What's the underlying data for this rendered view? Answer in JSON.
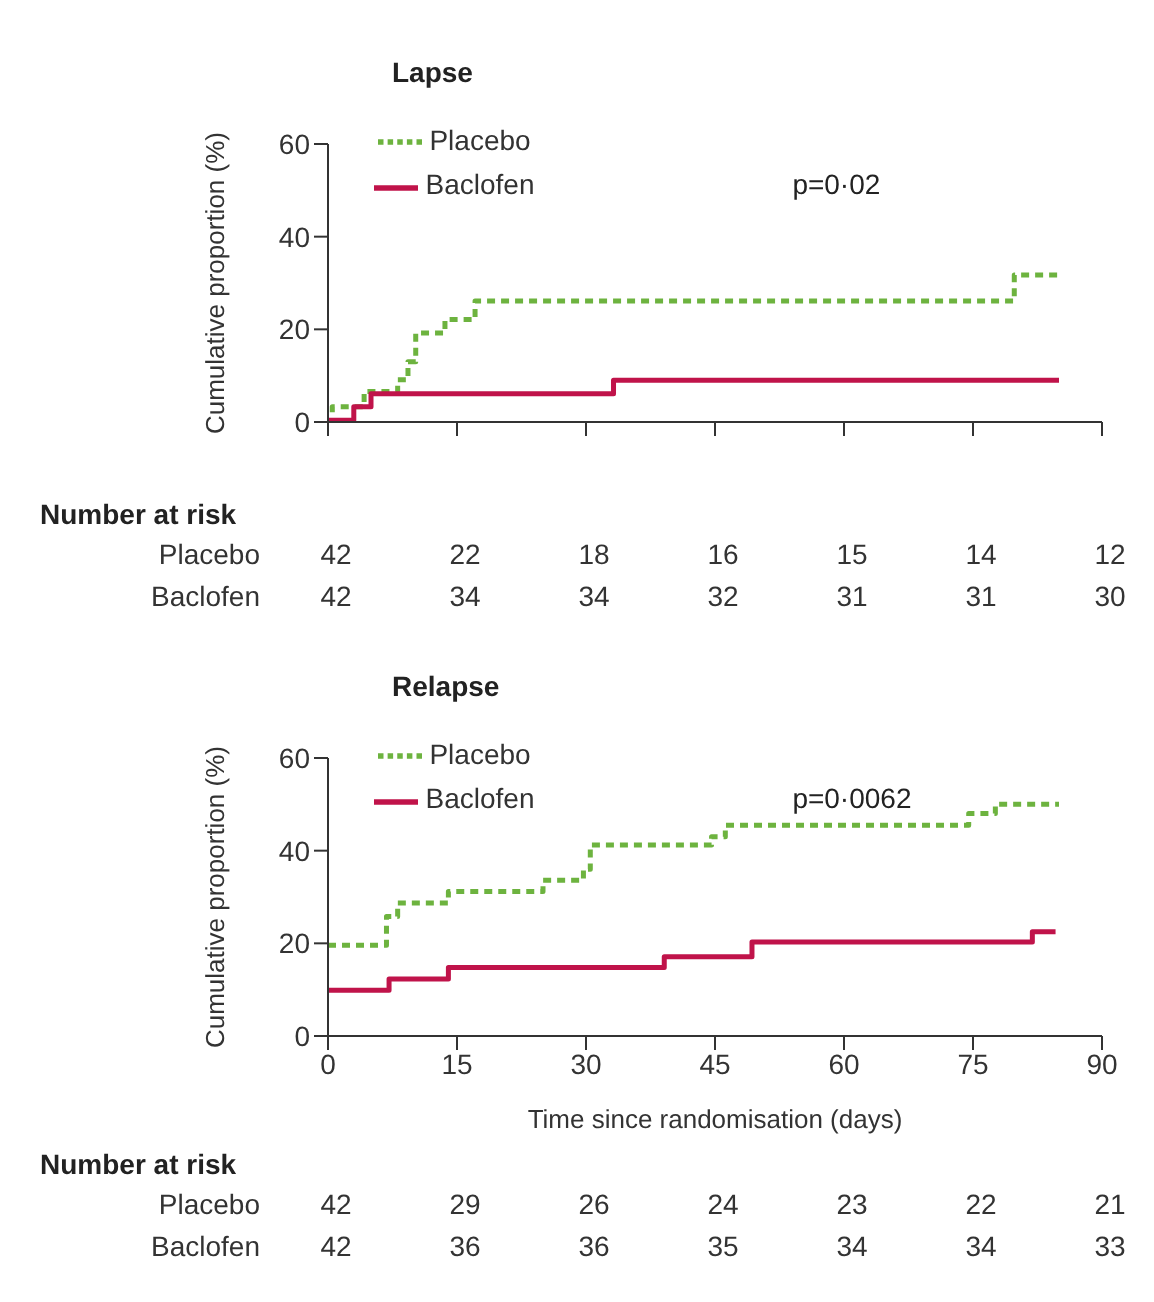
{
  "chart_data": [
    {
      "type": "step",
      "title": "Lapse",
      "ylabel": "Cumulative proportion (%)",
      "xlim": [
        0,
        90
      ],
      "xticks": [
        {
          "value": 0,
          "label": null
        },
        {
          "value": 15,
          "label": null
        },
        {
          "value": 30,
          "label": null
        },
        {
          "value": 45,
          "label": null
        },
        {
          "value": 60,
          "label": null
        },
        {
          "value": 75,
          "label": null
        },
        {
          "value": 90,
          "label": null
        }
      ],
      "ylim": [
        0,
        60
      ],
      "yticks": [
        0,
        20,
        40,
        60
      ],
      "tick_labels": "y",
      "legend": "top left",
      "marker": "none",
      "series": [
        {
          "name": "Placebo",
          "color": "#6db33f",
          "line_style": "dashed",
          "x": [
            0,
            0.5,
            4.2,
            8.1,
            9.3,
            10.2,
            13.6,
            17.1,
            79.8,
            85
          ],
          "values": [
            0,
            3.3,
            6.6,
            9.1,
            13,
            19.2,
            22.1,
            26.1,
            31.7,
            31.7
          ]
        },
        {
          "name": "Baclofen",
          "color": "#c0134a",
          "line_style": "solid",
          "x": [
            0,
            3,
            5,
            33.2,
            85
          ],
          "values": [
            0.4,
            3.3,
            6.1,
            9,
            9
          ]
        }
      ],
      "annotations": [
        "p=0·02",
        "Number at risk",
        "Placebo",
        "42",
        "22",
        "18",
        "16",
        "15",
        "14",
        "12",
        "Baclofen",
        "42",
        "34",
        "34",
        "32",
        "31",
        "31",
        "30"
      ]
    },
    {
      "type": "step",
      "title": "Relapse",
      "ylabel": "Cumulative proportion (%)",
      "xlabel": "Time since randomisation (days)",
      "xlim": [
        0,
        90
      ],
      "xticks": [
        0,
        15,
        30,
        45,
        60,
        75,
        90
      ],
      "ylim": [
        0,
        60
      ],
      "yticks": [
        0,
        20,
        40,
        60
      ],
      "legend": "top left",
      "marker": "none",
      "series": [
        {
          "name": "Placebo",
          "color": "#6db33f",
          "line_style": "dashed",
          "x": [
            0,
            6.8,
            8.1,
            14,
            25,
            29.7,
            30.5,
            44.6,
            46.2,
            74.5,
            77.6,
            85
          ],
          "values": [
            19.6,
            25.8,
            28.7,
            31.2,
            33.6,
            36,
            41.2,
            43,
            45.5,
            48,
            50,
            50
          ]
        },
        {
          "name": "Baclofen",
          "color": "#c0134a",
          "line_style": "solid",
          "x": [
            0,
            7.1,
            14,
            39.1,
            49.3,
            81.9,
            84.6
          ],
          "values": [
            9.9,
            12.3,
            14.8,
            17.1,
            20.3,
            22.5,
            22.5
          ]
        }
      ],
      "annotations": [
        "p=0·0062",
        "Number at risk",
        "Placebo",
        "42",
        "29",
        "26",
        "24",
        "23",
        "22",
        "21",
        "Baclofen",
        "42",
        "36",
        "36",
        "35",
        "34",
        "34",
        "33"
      ]
    }
  ]
}
